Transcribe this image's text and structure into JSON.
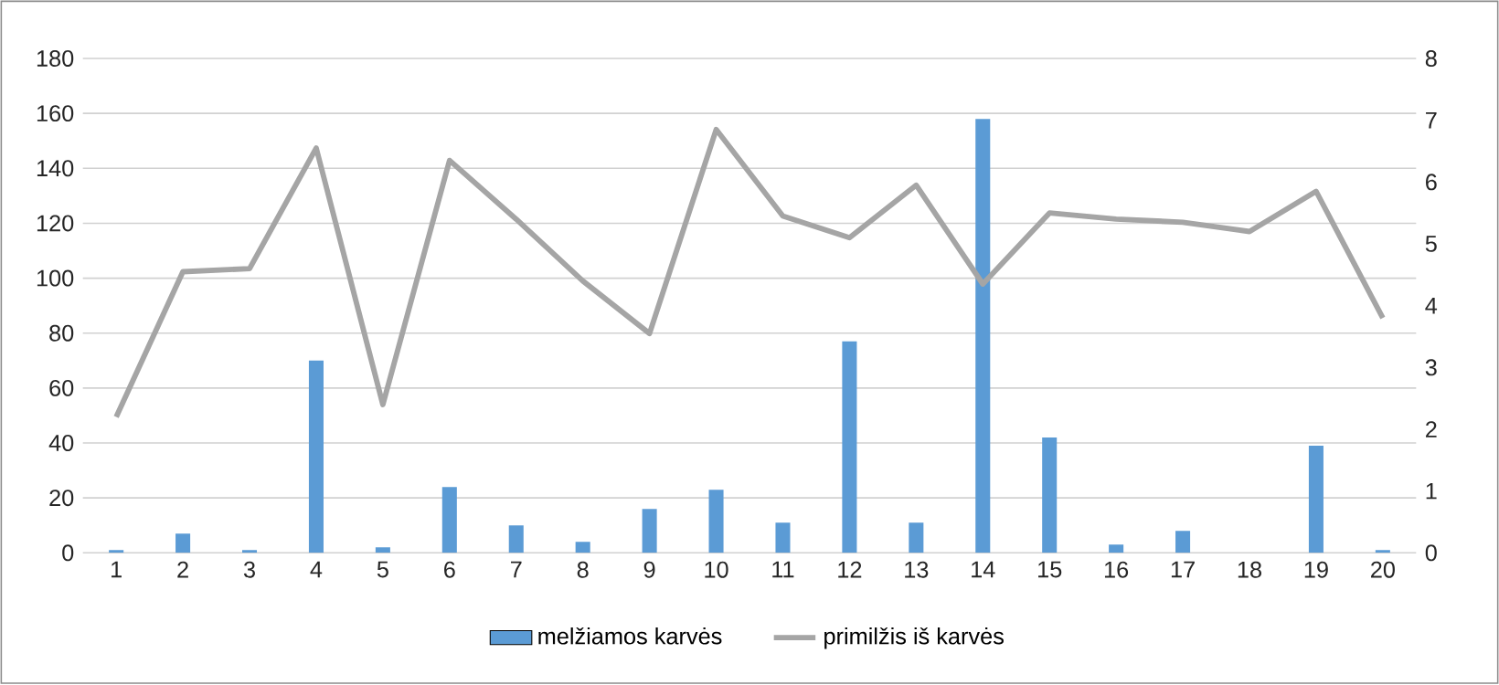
{
  "chart_data": {
    "type": "bar",
    "categories": [
      "1",
      "2",
      "3",
      "4",
      "5",
      "6",
      "7",
      "8",
      "9",
      "10",
      "11",
      "12",
      "13",
      "14",
      "15",
      "16",
      "17",
      "18",
      "19",
      "20"
    ],
    "series": [
      {
        "name": "melžiamos karvės",
        "color": "#5b9bd5",
        "values": [
          1,
          7,
          1,
          70,
          2,
          24,
          10,
          4,
          16,
          23,
          11,
          77,
          11,
          158,
          42,
          3,
          8,
          0,
          39,
          1
        ]
      },
      {
        "name": "primilžis iš karvės",
        "type": "line",
        "axis": "y2",
        "color": "#a5a5a5",
        "values": [
          2.2,
          4.55,
          4.6,
          6.55,
          2.4,
          6.35,
          5.4,
          4.4,
          3.55,
          6.85,
          5.45,
          5.1,
          5.95,
          4.35,
          5.5,
          5.4,
          5.35,
          5.2,
          5.85,
          3.8
        ]
      }
    ],
    "ylim": [
      0,
      180
    ],
    "yticks": [
      0,
      20,
      40,
      60,
      80,
      100,
      120,
      140,
      160,
      180
    ],
    "y2lim": [
      0,
      8
    ],
    "y2ticks": [
      0,
      1,
      2,
      3,
      4,
      5,
      6,
      7,
      8
    ],
    "grid": "y",
    "legend": "bottom"
  }
}
